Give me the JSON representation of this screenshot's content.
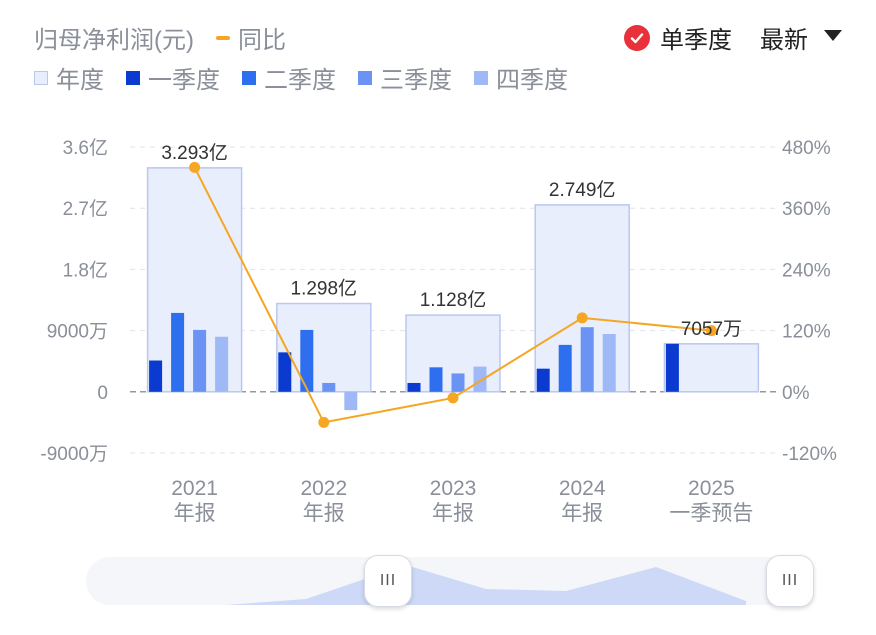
{
  "header": {
    "title": "归母净利润(元)",
    "line_legend": "同比",
    "toggle_label": "单季度",
    "dropdown_label": "最新"
  },
  "legend": [
    "年度",
    "一季度",
    "二季度",
    "三季度",
    "四季度"
  ],
  "colors": {
    "annual_fill": "#e8eefc",
    "annual_stroke": "#b9c8ef",
    "q1": "#0a3ad0",
    "q2": "#2e6ff0",
    "q3": "#6a93f3",
    "q4": "#9fb8f6",
    "yoy": "#f5a623"
  },
  "chart_data": {
    "type": "bar",
    "categories": [
      "2021\n年报",
      "2022\n年报",
      "2023\n年报",
      "2024\n年报",
      "2025\n一季预告"
    ],
    "annual": [
      3.293,
      1.298,
      1.128,
      2.749,
      0.7057
    ],
    "annual_labels": [
      "3.293亿",
      "1.298亿",
      "1.128亿",
      "2.749亿",
      "7057万"
    ],
    "series": [
      {
        "name": "一季度",
        "values": [
          0.46,
          0.58,
          0.13,
          0.34,
          0.7057
        ]
      },
      {
        "name": "二季度",
        "values": [
          1.16,
          0.91,
          0.36,
          0.69,
          null
        ]
      },
      {
        "name": "三季度",
        "values": [
          0.91,
          0.13,
          0.27,
          0.95,
          null
        ]
      },
      {
        "name": "四季度",
        "values": [
          0.81,
          -0.27,
          0.37,
          0.85,
          null
        ]
      }
    ],
    "yoy": {
      "name": "同比",
      "values": [
        440,
        -60,
        -12,
        145,
        120
      ]
    },
    "y_left": {
      "min": -0.9,
      "max": 3.6,
      "ticks": [
        3.6,
        2.7,
        1.8,
        0.9,
        0,
        -0.9
      ],
      "tick_labels": [
        "3.6亿",
        "2.7亿",
        "1.8亿",
        "9000万",
        "0",
        "-9000万"
      ]
    },
    "y_right": {
      "min": -120,
      "max": 480,
      "ticks": [
        480,
        360,
        240,
        120,
        0,
        -120
      ],
      "tick_labels": [
        "480%",
        "360%",
        "240%",
        "120%",
        "0%",
        "-120%"
      ]
    },
    "grid": true
  }
}
